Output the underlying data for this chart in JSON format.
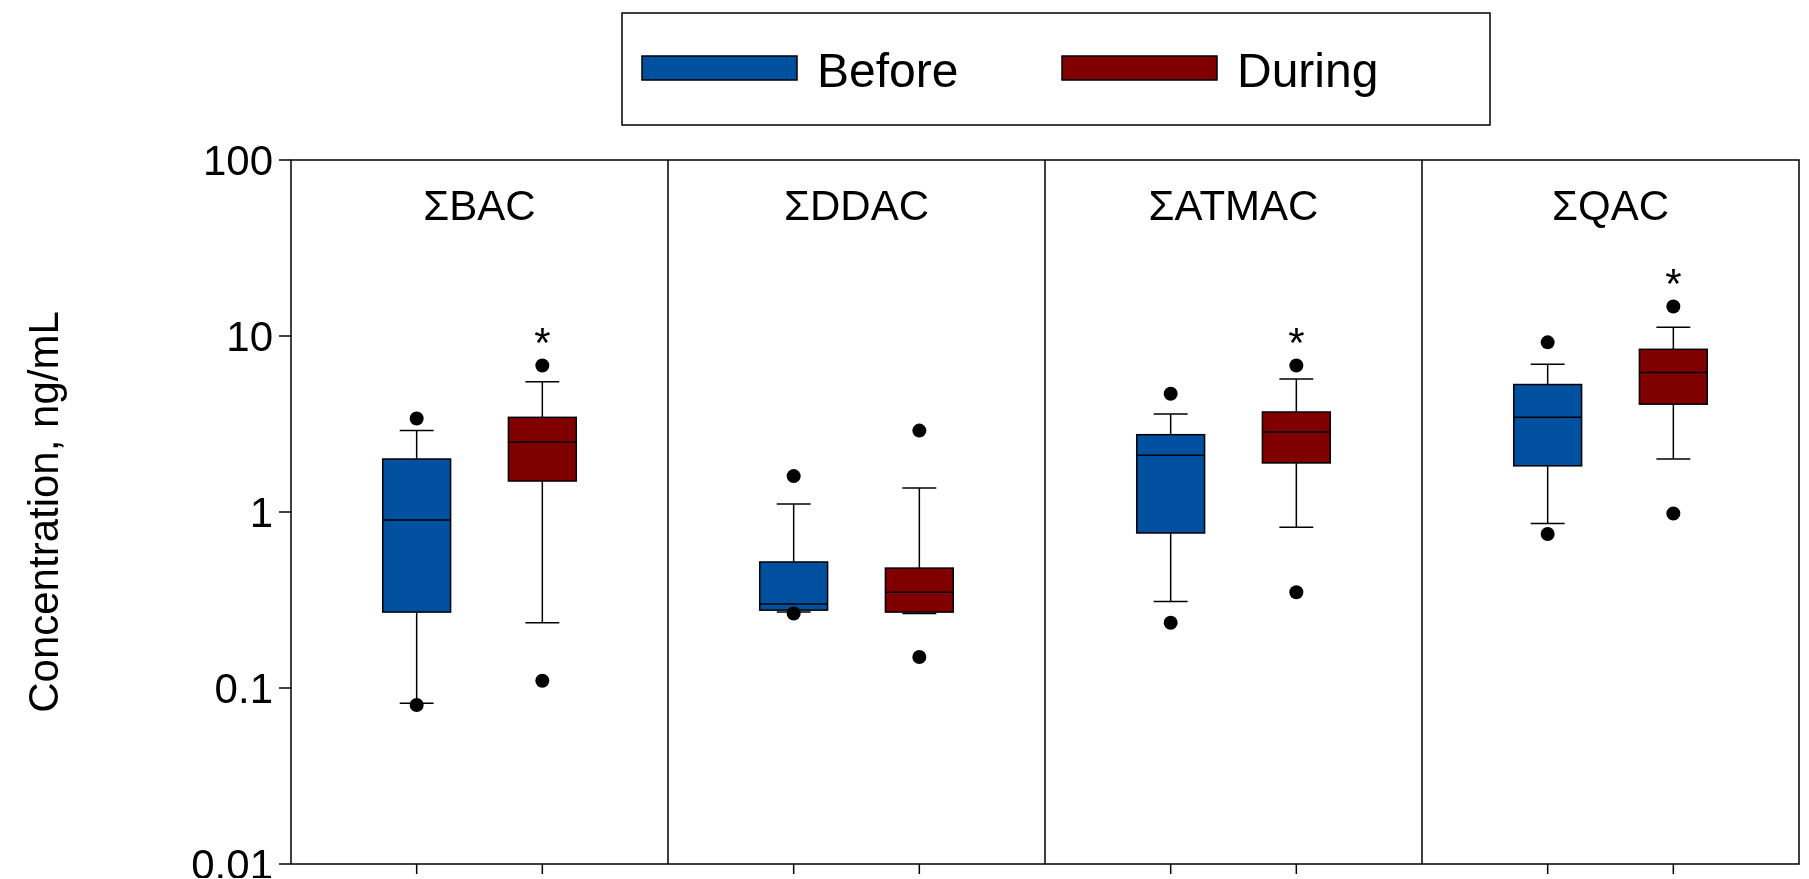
{
  "chart_data": {
    "type": "box",
    "ylabel": "Concentration, ng/mL",
    "categories": [
      "ΣBAC",
      "ΣDDAC",
      "ΣATMAC",
      "ΣQAC"
    ],
    "log": true,
    "ylim": [
      0.01,
      100
    ],
    "yticks": [
      0.01,
      0.1,
      1,
      10,
      100
    ],
    "legend": "top",
    "annotations": [
      "*",
      "*",
      "*"
    ],
    "series": [
      {
        "name": "Before",
        "color": "#0050a0",
        "boxes": [
          {
            "low": 0.082,
            "q1": 0.27,
            "median": 0.9,
            "q3": 2.0,
            "high": 2.9,
            "outliers": [
              3.4,
              0.08
            ]
          },
          {
            "low": 0.27,
            "q1": 0.277,
            "median": 0.3,
            "q3": 0.52,
            "high": 1.11,
            "outliers": [
              1.6,
              0.265
            ]
          },
          {
            "low": 0.31,
            "q1": 0.76,
            "median": 2.1,
            "q3": 2.75,
            "high": 3.6,
            "outliers": [
              4.7,
              0.235
            ]
          },
          {
            "low": 0.86,
            "q1": 1.83,
            "median": 3.45,
            "q3": 5.3,
            "high": 6.9,
            "outliers": [
              9.2,
              0.75
            ]
          }
        ]
      },
      {
        "name": "During",
        "color": "#800000",
        "boxes": [
          {
            "low": 0.235,
            "q1": 1.5,
            "median": 2.5,
            "q3": 3.45,
            "high": 5.5,
            "outliers": [
              6.8,
              0.11
            ]
          },
          {
            "low": 0.265,
            "q1": 0.27,
            "median": 0.35,
            "q3": 0.48,
            "high": 1.37,
            "outliers": [
              2.9,
              0.15
            ]
          },
          {
            "low": 0.82,
            "q1": 1.9,
            "median": 2.85,
            "q3": 3.7,
            "high": 5.7,
            "outliers": [
              6.8,
              0.35
            ]
          },
          {
            "low": 2.0,
            "q1": 4.1,
            "median": 6.2,
            "q3": 8.4,
            "high": 11.2,
            "outliers": [
              14.7,
              0.98
            ]
          }
        ]
      }
    ]
  }
}
